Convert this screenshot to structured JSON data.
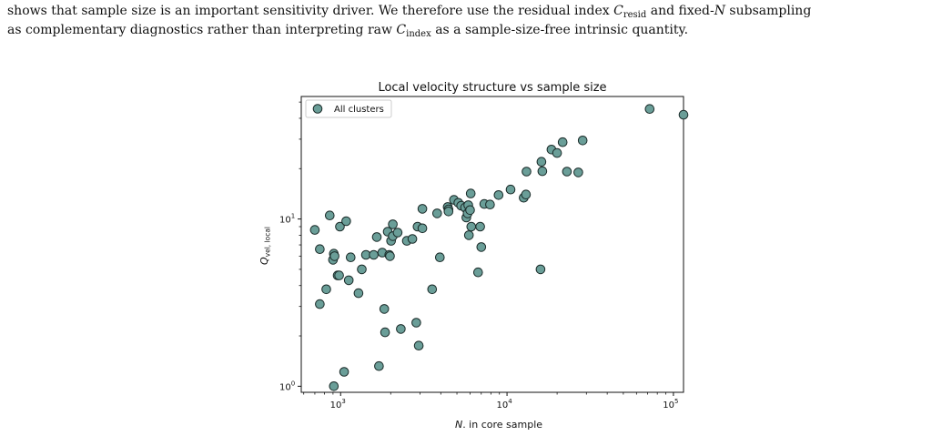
{
  "paragraph": {
    "line1_pre": "shows that sample size is an important sensitivity driver. We therefore use the residual index ",
    "line1_sym1": "C",
    "line1_sub1": "resid",
    "line1_mid": " and fixed-",
    "line1_sym2": "N",
    "line1_post": " subsampling",
    "line2_pre": "as complementary diagnostics rather than interpreting raw ",
    "line2_sym": "C",
    "line2_sub": "index",
    "line2_post": " as a sample-size-free intrinsic quantity."
  },
  "chart_data": {
    "type": "scatter",
    "title": "Local velocity structure vs sample size",
    "xlabel_sym": "N",
    "xlabel_rest": ". in core sample",
    "ylabel_sym": "Q",
    "ylabel_sub": "vel, local",
    "xscale": "log",
    "yscale": "log",
    "xlim": [
      580,
      115000
    ],
    "ylim": [
      0.92,
      54
    ],
    "grid": false,
    "legend_position": "top-left",
    "x_ticks": [
      {
        "value": 1000,
        "base": "10",
        "exp": "3"
      },
      {
        "value": 10000,
        "base": "10",
        "exp": "4"
      },
      {
        "value": 100000,
        "base": "10",
        "exp": "5"
      }
    ],
    "y_ticks": [
      {
        "value": 1,
        "base": "10",
        "exp": "0"
      },
      {
        "value": 10,
        "base": "10",
        "exp": "1"
      }
    ],
    "marker_fill": "#6a9e98",
    "marker_edge": "#1a2a28",
    "series": [
      {
        "name": "All clusters",
        "points": [
          [
            700,
            8.6
          ],
          [
            750,
            6.6
          ],
          [
            750,
            3.1
          ],
          [
            820,
            3.8
          ],
          [
            860,
            10.5
          ],
          [
            900,
            5.7
          ],
          [
            910,
            6.2
          ],
          [
            920,
            6.0
          ],
          [
            910,
            1.0
          ],
          [
            960,
            4.6
          ],
          [
            980,
            4.6
          ],
          [
            990,
            9.0
          ],
          [
            1050,
            1.22
          ],
          [
            1080,
            9.7
          ],
          [
            1120,
            4.3
          ],
          [
            1150,
            5.9
          ],
          [
            1280,
            3.6
          ],
          [
            1340,
            5.0
          ],
          [
            1420,
            6.1
          ],
          [
            1580,
            6.1
          ],
          [
            1650,
            7.8
          ],
          [
            1700,
            1.32
          ],
          [
            1780,
            6.3
          ],
          [
            1830,
            2.9
          ],
          [
            1850,
            2.1
          ],
          [
            1920,
            8.4
          ],
          [
            1960,
            6.1
          ],
          [
            1980,
            6.0
          ],
          [
            2010,
            7.4
          ],
          [
            2060,
            7.9
          ],
          [
            2060,
            9.3
          ],
          [
            2200,
            8.3
          ],
          [
            2300,
            2.2
          ],
          [
            2500,
            7.4
          ],
          [
            2700,
            7.6
          ],
          [
            2850,
            2.4
          ],
          [
            2900,
            9.0
          ],
          [
            2950,
            1.75
          ],
          [
            3100,
            11.5
          ],
          [
            3100,
            8.8
          ],
          [
            3550,
            3.8
          ],
          [
            3800,
            10.8
          ],
          [
            3950,
            5.9
          ],
          [
            4400,
            11.8
          ],
          [
            4450,
            11.4
          ],
          [
            4450,
            11.1
          ],
          [
            4800,
            13.0
          ],
          [
            5100,
            12.5
          ],
          [
            5300,
            12.0
          ],
          [
            5600,
            11.7
          ],
          [
            5700,
            10.2
          ],
          [
            5800,
            10.8
          ],
          [
            5850,
            12.1
          ],
          [
            5900,
            8.0
          ],
          [
            6100,
            9.0
          ],
          [
            6000,
            11.3
          ],
          [
            6050,
            14.2
          ],
          [
            6700,
            4.8
          ],
          [
            6900,
            9.0
          ],
          [
            7000,
            6.8
          ],
          [
            7300,
            12.3
          ],
          [
            7900,
            12.2
          ],
          [
            8900,
            13.9
          ],
          [
            10500,
            15.0
          ],
          [
            12600,
            13.4
          ],
          [
            13000,
            14.0
          ],
          [
            13100,
            19.2
          ],
          [
            15900,
            5.0
          ],
          [
            16100,
            22.0
          ],
          [
            16300,
            19.3
          ],
          [
            18500,
            26.0
          ],
          [
            20000,
            24.8
          ],
          [
            21600,
            28.8
          ],
          [
            22900,
            19.2
          ],
          [
            26800,
            19.0
          ],
          [
            28500,
            29.5
          ],
          [
            72000,
            45.5
          ],
          [
            115000,
            42.0
          ]
        ]
      }
    ]
  }
}
